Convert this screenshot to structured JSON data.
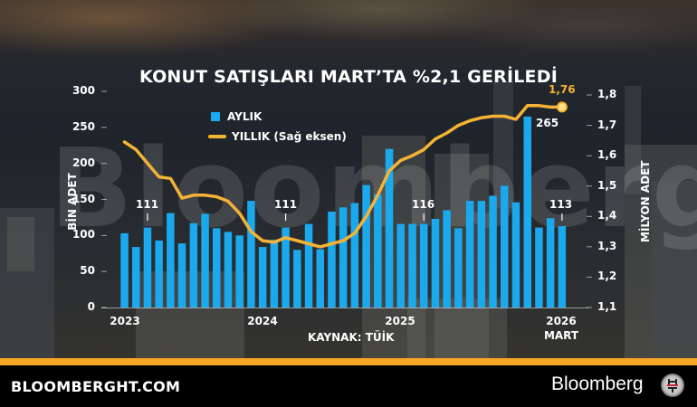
{
  "title": "KONUT SATIŞLARI MART’TA %2,1 GERİLEDİ",
  "legend": {
    "monthly": "AYLIK",
    "yearly": "YILLIK (Sağ eksen)"
  },
  "axes": {
    "left_label": "BİN ADET",
    "right_label": "MİLYON ADET",
    "left_ticks": [
      "300",
      "250",
      "200",
      "150",
      "100",
      "50",
      "0"
    ],
    "right_ticks": [
      "1,8",
      "1,7",
      "1,6",
      "1,5",
      "1,4",
      "1,3",
      "1,2",
      "1,1"
    ],
    "x_labels": [
      "2023",
      "2024",
      "2025",
      "2026",
      "MART"
    ]
  },
  "annotations": {
    "a1": "111",
    "a2": "111",
    "a3": "116",
    "a4": "265",
    "a5": "113",
    "end_value": "1,76"
  },
  "source": "KAYNAK: TÜİK",
  "watermark": "Bloomberg HT",
  "footer": {
    "site": "BLOOMBERGHT.COM",
    "brand": "Bloomberg"
  },
  "colors": {
    "bar": "#1ba9ee",
    "line": "#f5b335",
    "band": "#f5a623",
    "footer_bg": "#000000"
  },
  "chart_data": {
    "type": "bar",
    "title": "KONUT SATIŞLARI MART’TA %2,1 GERİLEDİ",
    "xlabel": "",
    "ylabel": "BİN ADET",
    "y2label": "MİLYON ADET",
    "ylim": [
      0,
      300
    ],
    "y2lim": [
      1.1,
      1.8
    ],
    "grid": false,
    "legend_position": "upper-left-inside",
    "categories": [
      "2023-01",
      "2023-02",
      "2023-03",
      "2023-04",
      "2023-05",
      "2023-06",
      "2023-07",
      "2023-08",
      "2023-09",
      "2023-10",
      "2023-11",
      "2023-12",
      "2024-01",
      "2024-02",
      "2024-03",
      "2024-04",
      "2024-05",
      "2024-06",
      "2024-07",
      "2024-08",
      "2024-09",
      "2024-10",
      "2024-11",
      "2024-12",
      "2025-01",
      "2025-02",
      "2025-03",
      "2025-04",
      "2025-05",
      "2025-06",
      "2025-07",
      "2025-08",
      "2025-09",
      "2025-10",
      "2025-11",
      "2025-12",
      "2026-01",
      "2026-02",
      "2026-03"
    ],
    "series": [
      {
        "name": "AYLIK",
        "type": "bar",
        "axis": "left",
        "values": [
          103,
          84,
          111,
          93,
          131,
          89,
          117,
          130,
          110,
          105,
          100,
          148,
          84,
          94,
          111,
          80,
          116,
          81,
          133,
          139,
          145,
          170,
          157,
          220,
          116,
          116,
          116,
          123,
          135,
          110,
          148,
          148,
          155,
          169,
          146,
          265,
          111,
          124,
          113
        ]
      },
      {
        "name": "YILLIK (Sağ eksen)",
        "type": "line",
        "axis": "right",
        "values": [
          1.645,
          1.62,
          1.575,
          1.53,
          1.525,
          1.46,
          1.47,
          1.47,
          1.465,
          1.45,
          1.41,
          1.35,
          1.32,
          1.315,
          1.33,
          1.32,
          1.31,
          1.3,
          1.31,
          1.32,
          1.345,
          1.4,
          1.47,
          1.55,
          1.585,
          1.6,
          1.62,
          1.655,
          1.675,
          1.7,
          1.715,
          1.725,
          1.73,
          1.73,
          1.72,
          1.765,
          1.765,
          1.76,
          1.76
        ]
      }
    ],
    "annotations": [
      {
        "category": "2023-03",
        "text": "111"
      },
      {
        "category": "2024-03",
        "text": "111"
      },
      {
        "category": "2025-03",
        "text": "116"
      },
      {
        "category": "2025-12",
        "text": "265"
      },
      {
        "category": "2026-03",
        "text": "113"
      },
      {
        "category": "2026-03",
        "series": "YILLIK",
        "text": "1,76"
      }
    ],
    "x_tick_labels": [
      "2023",
      "2024",
      "2025",
      "2026 MART"
    ]
  }
}
